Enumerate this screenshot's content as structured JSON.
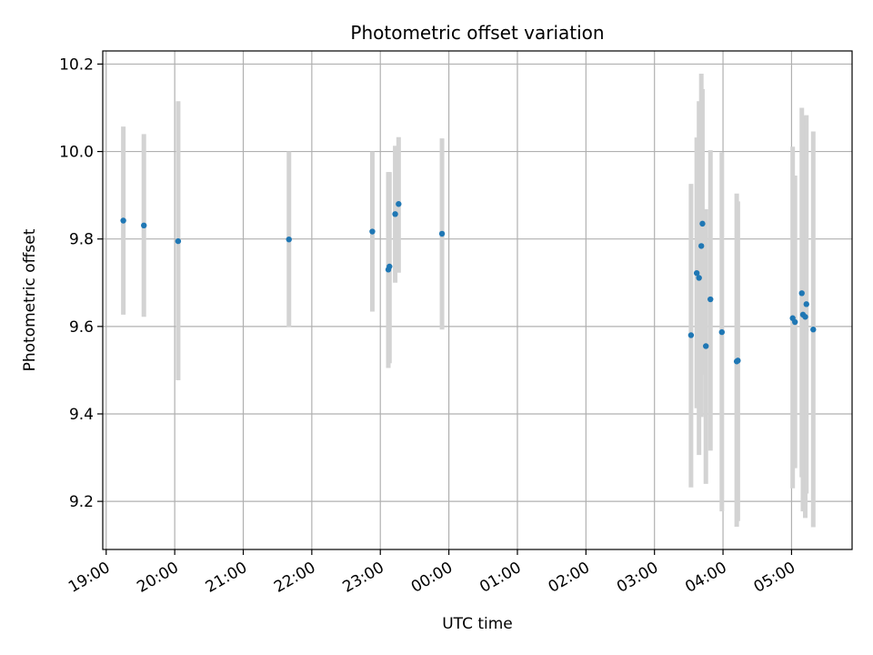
{
  "chart_data": {
    "type": "scatter",
    "title": "Photometric offset variation",
    "xlabel": "UTC time",
    "ylabel": "Photometric offset",
    "x_ticks": [
      "19:00",
      "20:00",
      "21:00",
      "22:00",
      "23:00",
      "00:00",
      "01:00",
      "02:00",
      "03:00",
      "04:00",
      "05:00"
    ],
    "y_ticks": [
      "9.2",
      "9.4",
      "9.6",
      "9.8",
      "10.0",
      "10.2"
    ],
    "xlim": [
      "18:57",
      "05:53"
    ],
    "ylim": [
      9.09,
      10.23
    ],
    "grid": true,
    "legend": "none",
    "colors": {
      "point": "#1f77b4",
      "errorbar": "#d3d3d3",
      "grid": "#b0b0b0"
    },
    "points": [
      {
        "t": "19:15",
        "y": 9.842,
        "ylo": 9.627,
        "yhi": 10.057
      },
      {
        "t": "19:33",
        "y": 9.831,
        "ylo": 9.622,
        "yhi": 10.04
      },
      {
        "t": "20:03",
        "y": 9.795,
        "ylo": 9.477,
        "yhi": 10.115
      },
      {
        "t": "21:40",
        "y": 9.799,
        "ylo": 9.598,
        "yhi": 10.0
      },
      {
        "t": "22:53",
        "y": 9.817,
        "ylo": 9.634,
        "yhi": 10.0
      },
      {
        "t": "23:07",
        "y": 9.73,
        "ylo": 9.505,
        "yhi": 9.953
      },
      {
        "t": "23:08",
        "y": 9.737,
        "ylo": 9.516,
        "yhi": 9.953
      },
      {
        "t": "23:13",
        "y": 9.857,
        "ylo": 9.7,
        "yhi": 10.013
      },
      {
        "t": "23:16",
        "y": 9.88,
        "ylo": 9.723,
        "yhi": 10.033
      },
      {
        "t": "23:54",
        "y": 9.812,
        "ylo": 9.593,
        "yhi": 10.03
      },
      {
        "t": "03:32",
        "y": 9.58,
        "ylo": 9.232,
        "yhi": 9.926
      },
      {
        "t": "03:37",
        "y": 9.722,
        "ylo": 9.413,
        "yhi": 10.032
      },
      {
        "t": "03:39",
        "y": 9.711,
        "ylo": 9.306,
        "yhi": 10.115
      },
      {
        "t": "03:41",
        "y": 9.784,
        "ylo": 9.393,
        "yhi": 10.178
      },
      {
        "t": "03:42",
        "y": 9.835,
        "ylo": 9.489,
        "yhi": 10.143
      },
      {
        "t": "03:45",
        "y": 9.555,
        "ylo": 9.24,
        "yhi": 9.868
      },
      {
        "t": "03:49",
        "y": 9.662,
        "ylo": 9.316,
        "yhi": 10.003
      },
      {
        "t": "03:59",
        "y": 9.587,
        "ylo": 9.177,
        "yhi": 9.998
      },
      {
        "t": "04:12",
        "y": 9.52,
        "ylo": 9.142,
        "yhi": 9.904
      },
      {
        "t": "04:13",
        "y": 9.522,
        "ylo": 9.155,
        "yhi": 9.886
      },
      {
        "t": "05:01",
        "y": 9.619,
        "ylo": 9.23,
        "yhi": 10.011
      },
      {
        "t": "05:03",
        "y": 9.61,
        "ylo": 9.276,
        "yhi": 9.945
      },
      {
        "t": "05:09",
        "y": 9.676,
        "ylo": 9.255,
        "yhi": 10.1
      },
      {
        "t": "05:10",
        "y": 9.627,
        "ylo": 9.177,
        "yhi": 10.077
      },
      {
        "t": "05:12",
        "y": 9.622,
        "ylo": 9.162,
        "yhi": 10.082
      },
      {
        "t": "05:13",
        "y": 9.651,
        "ylo": 9.218,
        "yhi": 10.083
      },
      {
        "t": "05:19",
        "y": 9.593,
        "ylo": 9.141,
        "yhi": 10.046
      }
    ]
  }
}
